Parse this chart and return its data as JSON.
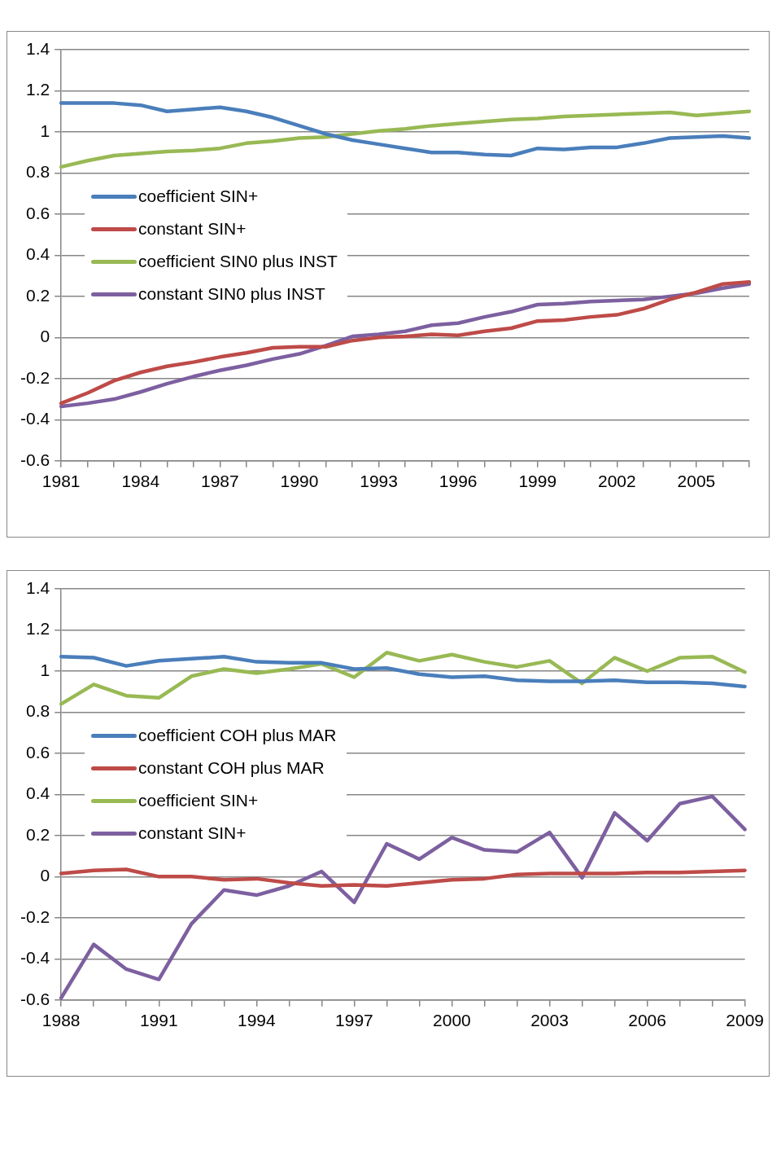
{
  "chart_data": [
    {
      "type": "line",
      "categories": [
        "1981",
        null,
        null,
        "1984",
        null,
        null,
        "1987",
        null,
        null,
        "1990",
        null,
        null,
        "1993",
        null,
        null,
        "1996",
        null,
        null,
        "1999",
        null,
        null,
        "2002",
        null,
        null,
        "2005",
        null,
        null
      ],
      "ylim": [
        -0.6,
        1.4
      ],
      "yticks": [
        -0.6,
        -0.4,
        -0.2,
        0,
        0.2,
        0.4,
        0.6,
        0.8,
        1,
        1.2,
        1.4
      ],
      "grid": "y",
      "legend": "left",
      "marker": "none",
      "line_style": "solid",
      "series": [
        {
          "name": "coefficient SIN+",
          "color": "#4a7ebb",
          "values": [
            1.14,
            1.14,
            1.14,
            1.13,
            1.1,
            1.11,
            1.12,
            1.1,
            1.07,
            1.03,
            0.99,
            0.96,
            0.94,
            0.92,
            0.9,
            0.9,
            0.89,
            0.885,
            0.92,
            0.915,
            0.925,
            0.925,
            0.945,
            0.97,
            0.975,
            0.98,
            0.97
          ]
        },
        {
          "name": "constant SIN+",
          "color": "#be4b48",
          "values": [
            -0.32,
            -0.27,
            -0.21,
            -0.17,
            -0.14,
            -0.12,
            -0.095,
            -0.075,
            -0.05,
            -0.045,
            -0.045,
            -0.015,
            0.0,
            0.005,
            0.015,
            0.01,
            0.03,
            0.045,
            0.08,
            0.085,
            0.1,
            0.11,
            0.14,
            0.185,
            0.22,
            0.26,
            0.27
          ]
        },
        {
          "name": "coefficient SIN0 plus INST",
          "color": "#98b954",
          "values": [
            0.83,
            0.86,
            0.885,
            0.895,
            0.905,
            0.91,
            0.92,
            0.945,
            0.955,
            0.97,
            0.975,
            0.99,
            1.005,
            1.015,
            1.03,
            1.04,
            1.05,
            1.06,
            1.065,
            1.075,
            1.08,
            1.085,
            1.09,
            1.095,
            1.08,
            1.09,
            1.1
          ]
        },
        {
          "name": "constant SIN0 plus INST",
          "color": "#7d60a0",
          "values": [
            -0.335,
            -0.32,
            -0.3,
            -0.265,
            -0.225,
            -0.19,
            -0.16,
            -0.135,
            -0.105,
            -0.08,
            -0.04,
            0.005,
            0.015,
            0.03,
            0.06,
            0.07,
            0.1,
            0.125,
            0.16,
            0.165,
            0.175,
            0.18,
            0.185,
            0.2,
            0.215,
            0.24,
            0.26
          ]
        }
      ]
    },
    {
      "type": "line",
      "categories": [
        "1988",
        null,
        null,
        "1991",
        null,
        null,
        "1994",
        null,
        null,
        "1997",
        null,
        null,
        "2000",
        null,
        null,
        "2003",
        null,
        null,
        "2006",
        null,
        null,
        "2009"
      ],
      "ylim": [
        -0.6,
        1.4
      ],
      "yticks": [
        -0.6,
        -0.4,
        -0.2,
        0,
        0.2,
        0.4,
        0.6,
        0.8,
        1,
        1.2,
        1.4
      ],
      "grid": "y",
      "legend": "left",
      "marker": "none",
      "line_style": "solid",
      "series": [
        {
          "name": "coefficient COH plus MAR",
          "color": "#4a7ebb",
          "values": [
            1.07,
            1.065,
            1.025,
            1.05,
            1.06,
            1.07,
            1.045,
            1.04,
            1.04,
            1.01,
            1.015,
            0.985,
            0.97,
            0.975,
            0.955,
            0.95,
            0.95,
            0.955,
            0.945,
            0.945,
            0.94,
            0.925
          ]
        },
        {
          "name": "constant COH plus MAR",
          "color": "#be4b48",
          "values": [
            0.015,
            0.03,
            0.035,
            0.0,
            0.0,
            -0.015,
            -0.01,
            -0.03,
            -0.045,
            -0.04,
            -0.045,
            -0.03,
            -0.015,
            -0.01,
            0.01,
            0.015,
            0.015,
            0.015,
            0.02,
            0.02,
            0.025,
            0.03
          ]
        },
        {
          "name": "coefficient SIN+",
          "color": "#98b954",
          "values": [
            0.84,
            0.935,
            0.88,
            0.87,
            0.975,
            1.01,
            0.99,
            1.01,
            1.035,
            0.97,
            1.09,
            1.05,
            1.08,
            1.045,
            1.02,
            1.05,
            0.94,
            1.065,
            1.0,
            1.065,
            1.07,
            0.995
          ]
        },
        {
          "name": "constant SIN+",
          "color": "#7d60a0",
          "values": [
            -0.59,
            -0.33,
            -0.45,
            -0.5,
            -0.23,
            -0.065,
            -0.09,
            -0.045,
            0.025,
            -0.125,
            0.16,
            0.085,
            0.19,
            0.13,
            0.12,
            0.215,
            -0.005,
            0.31,
            0.175,
            0.355,
            0.39,
            0.23
          ]
        }
      ]
    }
  ]
}
